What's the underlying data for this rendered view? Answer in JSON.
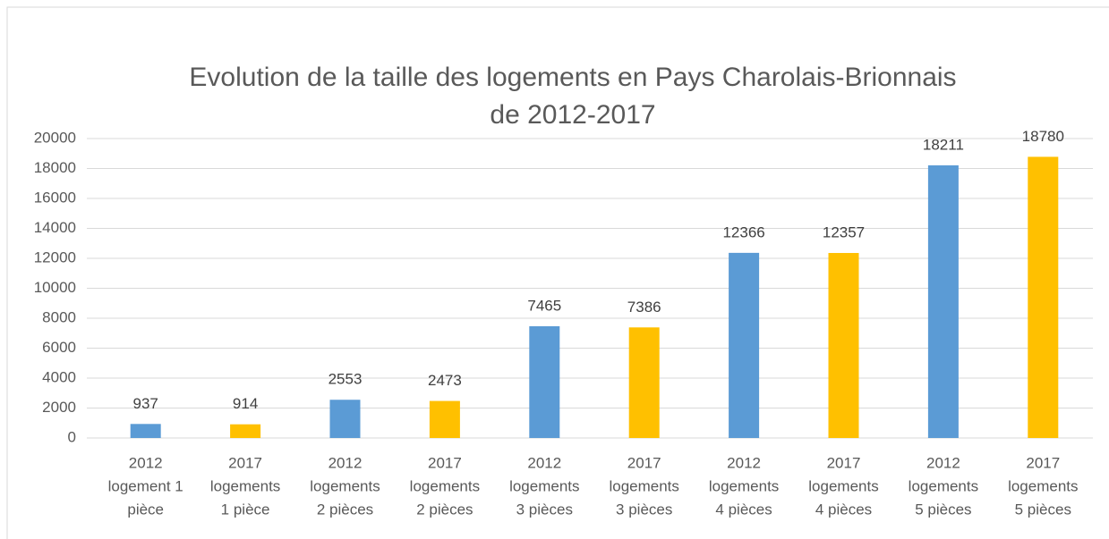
{
  "chart_data": {
    "type": "bar",
    "title": [
      "Evolution de la taille des logements en Pays Charolais-Brionnais",
      "de 2012-2017"
    ],
    "categories": [
      [
        "2012",
        "logement 1",
        "pièce"
      ],
      [
        "2017",
        "logements",
        "1 pièce"
      ],
      [
        "2012",
        "logements",
        "2 pièces"
      ],
      [
        "2017",
        "logements",
        "2 pièces"
      ],
      [
        "2012",
        "logements",
        "3 pièces"
      ],
      [
        "2017",
        "logements",
        "3 pièces"
      ],
      [
        "2012",
        "logements",
        "4 pièces"
      ],
      [
        "2017",
        "logements",
        "4 pièces"
      ],
      [
        "2012",
        "logements",
        "5 pièces"
      ],
      [
        "2017",
        "logements",
        "5 pièces"
      ]
    ],
    "values": [
      937,
      914,
      2553,
      2473,
      7465,
      7386,
      12366,
      12357,
      18211,
      18780
    ],
    "colors": [
      "#5b9bd5",
      "#ffc000",
      "#5b9bd5",
      "#ffc000",
      "#5b9bd5",
      "#ffc000",
      "#5b9bd5",
      "#ffc000",
      "#5b9bd5",
      "#ffc000"
    ],
    "ylim": [
      0,
      20000
    ],
    "yticks": [
      0,
      2000,
      4000,
      6000,
      8000,
      10000,
      12000,
      14000,
      16000,
      18000,
      20000
    ],
    "grid": true
  }
}
